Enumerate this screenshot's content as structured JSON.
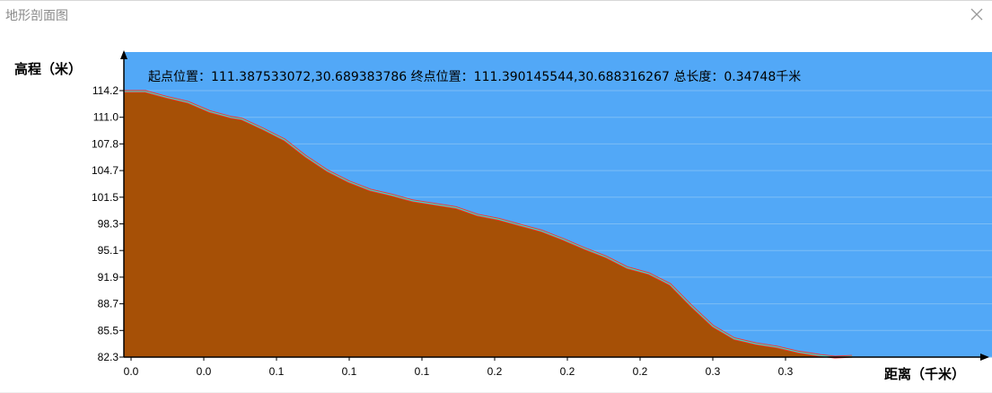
{
  "window": {
    "title": "地形剖面图"
  },
  "chart_data": {
    "type": "area",
    "info": "起点位置：111.387533072,30.689383786 终点位置：111.390145544,30.688316267 总长度：0.34748千米",
    "ylabel": "高程（米）",
    "xlabel": "距离（千米）",
    "ylim": [
      82.3,
      114.2
    ],
    "xlim": [
      0,
      0.34748
    ],
    "yticks": [
      "114.2",
      "111.0",
      "107.8",
      "104.7",
      "101.5",
      "98.3",
      "95.1",
      "91.9",
      "88.7",
      "85.5",
      "82.3"
    ],
    "xticks": [
      "0.0",
      "0.0",
      "0.1",
      "0.1",
      "0.1",
      "0.2",
      "0.2",
      "0.2",
      "0.3",
      "0.3"
    ],
    "grid": true,
    "colors": {
      "sky": "#52a8f7",
      "terrain": "#a65006",
      "outline": "#ff2a2a",
      "inner_line": "#34e0c8"
    },
    "series": [
      {
        "x": [
          0.0,
          0.01,
          0.02,
          0.03,
          0.04,
          0.05,
          0.055,
          0.065,
          0.075,
          0.085,
          0.095,
          0.105,
          0.115,
          0.125,
          0.135,
          0.145,
          0.155,
          0.165,
          0.175,
          0.185,
          0.195,
          0.205,
          0.215,
          0.225,
          0.235,
          0.245,
          0.255,
          0.265,
          0.275,
          0.285,
          0.295,
          0.305,
          0.315,
          0.325,
          0.332,
          0.34
        ],
        "values": [
          114.1,
          114.1,
          113.4,
          112.8,
          111.7,
          111.0,
          110.8,
          109.6,
          108.3,
          106.3,
          104.6,
          103.3,
          102.3,
          101.7,
          101.0,
          100.6,
          100.2,
          99.3,
          98.8,
          98.1,
          97.4,
          96.4,
          95.3,
          94.3,
          93.0,
          92.3,
          91.0,
          88.4,
          86.0,
          84.5,
          83.9,
          83.5,
          82.9,
          82.5,
          82.3,
          82.4
        ]
      }
    ]
  }
}
